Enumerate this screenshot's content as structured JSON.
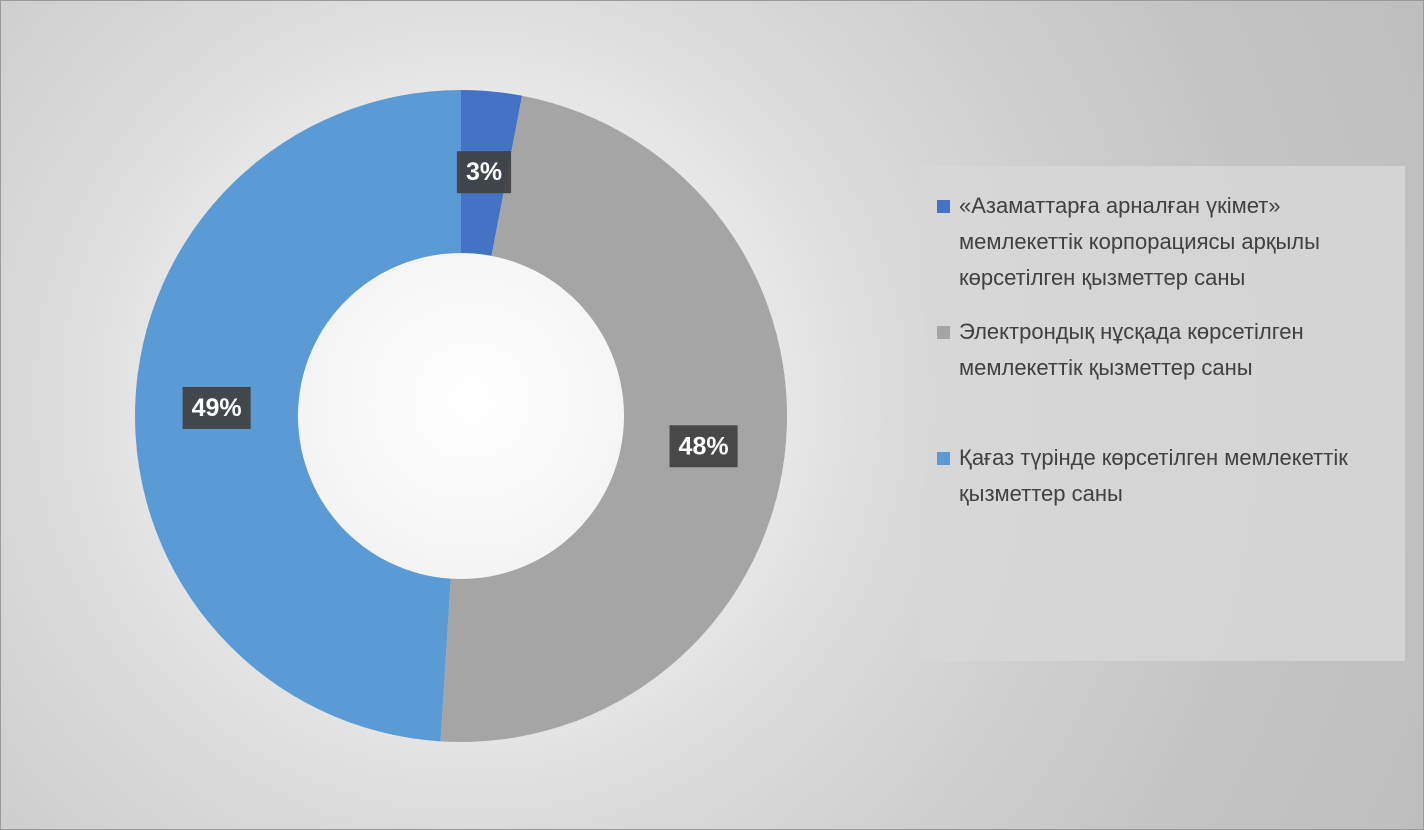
{
  "chart_data": {
    "type": "donut",
    "categories": [
      "«Азаматтарға арналған үкімет» мемлекеттік корпорациясы арқылы көрсетілген қызметтер саны",
      "Электрондық нұсқада көрсетілген мемлекеттік қызметтер саны",
      "Қағаз түрінде көрсетілген мемлекеттік қызметтер саны"
    ],
    "values": [
      3,
      48,
      49
    ],
    "value_labels": [
      "3%",
      "48%",
      "49%"
    ],
    "colors": [
      "#4472c4",
      "#a5a5a5",
      "#5b9bd5"
    ],
    "legend": "right"
  }
}
